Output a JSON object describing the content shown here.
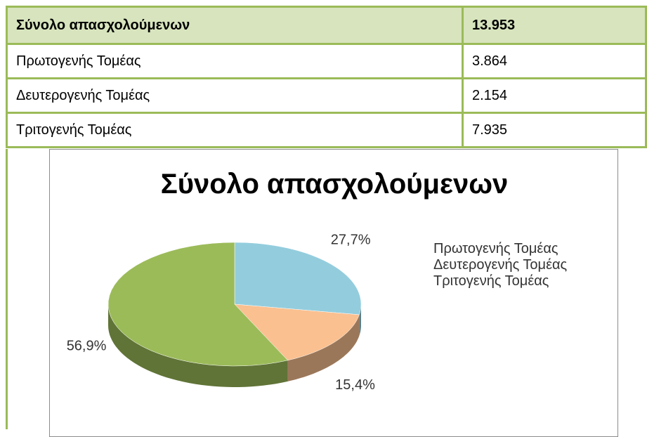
{
  "table": {
    "rows": [
      [
        "Σύνολο απασχολούμενων",
        "13.953"
      ],
      [
        "Πρωτογενής Τομέας",
        "3.864"
      ],
      [
        "Δευτερογενής Τομέας",
        "2.154"
      ],
      [
        "Τριτογενής Τομέας",
        "7.935"
      ]
    ]
  },
  "chart_data": {
    "type": "pie",
    "title": "Σύνολο απασχολούμενων",
    "categories": [
      "Πρωτογενής Τομέας",
      "Δευτερογενής Τομέας",
      "Τριτογενής Τομέας"
    ],
    "values": [
      27.7,
      15.4,
      56.9
    ],
    "value_labels": [
      "27,7%",
      "15,4%",
      "56,9%"
    ],
    "colors": [
      "#93cddd",
      "#fac090",
      "#9bbb59"
    ],
    "legend": "right"
  }
}
